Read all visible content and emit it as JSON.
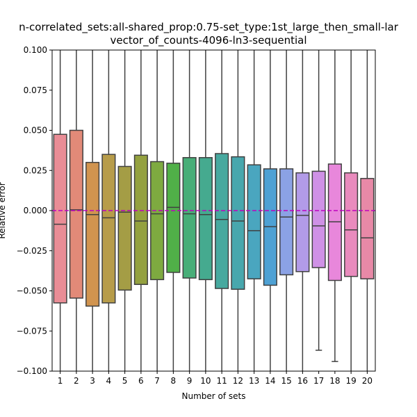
{
  "chart_data": {
    "type": "box",
    "title_line1": "n-correlated_sets:all-shared_prop:0.75-set_type:1st_large_then_small-lar",
    "title_line2": "vector_of_counts-4096-ln3-sequential",
    "xlabel": "Number of sets",
    "ylabel": "Relative error",
    "ylim": [
      -0.1,
      0.1
    ],
    "yticks": [
      -0.1,
      -0.075,
      -0.05,
      -0.025,
      0.0,
      0.025,
      0.05,
      0.075,
      0.1
    ],
    "ytick_labels": [
      "−0.100",
      "−0.075",
      "−0.050",
      "−0.025",
      "0.000",
      "0.025",
      "0.050",
      "0.075",
      "0.100"
    ],
    "reference_line": {
      "y": 0.0,
      "color": "#bf00bf",
      "style": "dashed"
    },
    "categories": [
      "1",
      "2",
      "3",
      "4",
      "5",
      "6",
      "7",
      "8",
      "9",
      "10",
      "11",
      "12",
      "13",
      "14",
      "15",
      "16",
      "17",
      "18",
      "19",
      "20"
    ],
    "boxes": [
      {
        "q1": -0.0575,
        "median": -0.0085,
        "q3": 0.0475,
        "whisker_low": -0.1,
        "whisker_high": 0.1
      },
      {
        "q1": -0.0545,
        "median": 0.0005,
        "q3": 0.05,
        "whisker_low": -0.1,
        "whisker_high": 0.1
      },
      {
        "q1": -0.0595,
        "median": -0.0025,
        "q3": 0.03,
        "whisker_low": -0.1,
        "whisker_high": 0.1
      },
      {
        "q1": -0.0575,
        "median": -0.0045,
        "q3": 0.035,
        "whisker_low": -0.1,
        "whisker_high": 0.1
      },
      {
        "q1": -0.0495,
        "median": -0.001,
        "q3": 0.0275,
        "whisker_low": -0.1,
        "whisker_high": 0.1
      },
      {
        "q1": -0.046,
        "median": -0.0065,
        "q3": 0.0345,
        "whisker_low": -0.1,
        "whisker_high": 0.1
      },
      {
        "q1": -0.043,
        "median": -0.002,
        "q3": 0.0305,
        "whisker_low": -0.1,
        "whisker_high": 0.1
      },
      {
        "q1": -0.0385,
        "median": 0.002,
        "q3": 0.0295,
        "whisker_low": -0.1,
        "whisker_high": 0.1
      },
      {
        "q1": -0.042,
        "median": -0.002,
        "q3": 0.033,
        "whisker_low": -0.1,
        "whisker_high": 0.1
      },
      {
        "q1": -0.043,
        "median": -0.0025,
        "q3": 0.033,
        "whisker_low": -0.1,
        "whisker_high": 0.1
      },
      {
        "q1": -0.0485,
        "median": -0.0055,
        "q3": 0.0355,
        "whisker_low": -0.1,
        "whisker_high": 0.1
      },
      {
        "q1": -0.049,
        "median": -0.0065,
        "q3": 0.0335,
        "whisker_low": -0.1,
        "whisker_high": 0.1
      },
      {
        "q1": -0.0425,
        "median": -0.0125,
        "q3": 0.0285,
        "whisker_low": -0.1,
        "whisker_high": 0.1
      },
      {
        "q1": -0.0465,
        "median": -0.01,
        "q3": 0.026,
        "whisker_low": -0.1,
        "whisker_high": 0.1
      },
      {
        "q1": -0.04,
        "median": -0.004,
        "q3": 0.026,
        "whisker_low": -0.1,
        "whisker_high": 0.1
      },
      {
        "q1": -0.038,
        "median": -0.003,
        "q3": 0.0235,
        "whisker_low": -0.1,
        "whisker_high": 0.1
      },
      {
        "q1": -0.0355,
        "median": -0.0095,
        "q3": 0.0245,
        "whisker_low": -0.087,
        "whisker_high": 0.1
      },
      {
        "q1": -0.0435,
        "median": -0.007,
        "q3": 0.029,
        "whisker_low": -0.094,
        "whisker_high": 0.1
      },
      {
        "q1": -0.041,
        "median": -0.012,
        "q3": 0.0235,
        "whisker_low": -0.1,
        "whisker_high": 0.1
      },
      {
        "q1": -0.0425,
        "median": -0.017,
        "q3": 0.02,
        "whisker_low": -0.1,
        "whisker_high": 0.1
      }
    ],
    "colors": [
      "#e98d96",
      "#e28a78",
      "#d1944f",
      "#b79c4a",
      "#a49d45",
      "#94a13f",
      "#7eaa40",
      "#50b048",
      "#48ae78",
      "#45aa8f",
      "#47a99f",
      "#48a7ad",
      "#4aa6bf",
      "#4ea1d4",
      "#8ba2e5",
      "#b29be8",
      "#cf91e6",
      "#e887db",
      "#e98bbd",
      "#e889a7"
    ],
    "grid": false,
    "legend": "none"
  }
}
